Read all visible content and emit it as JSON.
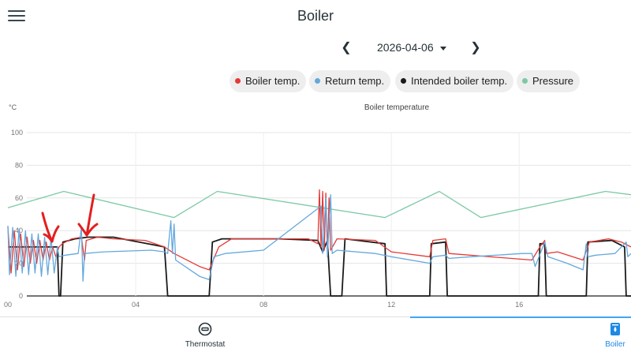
{
  "app": {
    "title": "Boiler",
    "menu_icon": "hamburger-menu-icon"
  },
  "date_nav": {
    "prev_icon": "chevron-left-icon",
    "date": "2026-04-06",
    "next_icon": "chevron-right-icon"
  },
  "legend": [
    {
      "label": "Boiler temp.",
      "color": "#e53935"
    },
    {
      "label": "Return temp.",
      "color": "#64a8dc"
    },
    {
      "label": "Intended boiler temp.",
      "color": "#1a1a1a"
    },
    {
      "label": "Pressure",
      "color": "#7cc9a4"
    }
  ],
  "chart": {
    "unit": "°C",
    "title": "Boiler temperature"
  },
  "chart_data": {
    "type": "line",
    "title": "Boiler temperature",
    "ylabel": "°C",
    "xlim": [
      0,
      19.5
    ],
    "ylim": [
      0,
      100
    ],
    "y_ticks": [
      "0",
      "20",
      "40",
      "60",
      "80",
      "100"
    ],
    "x_ticks": [
      {
        "value": 0,
        "label": "00"
      },
      {
        "value": 4,
        "label": "04"
      },
      {
        "value": 8,
        "label": "08"
      },
      {
        "value": 12,
        "label": "12"
      },
      {
        "value": 16,
        "label": "16"
      }
    ],
    "grid": true,
    "legend_position": "top-right",
    "series": [
      {
        "name": "Pressure",
        "color": "#7cc9a4",
        "points": [
          [
            0,
            54
          ],
          [
            1.75,
            64
          ],
          [
            5.2,
            48
          ],
          [
            6.55,
            64
          ],
          [
            11.8,
            48
          ],
          [
            13.5,
            64
          ],
          [
            14.8,
            48
          ],
          [
            18.7,
            64
          ],
          [
            19.5,
            62
          ]
        ]
      },
      {
        "name": "Intended boiler temp.",
        "color": "#1a1a1a",
        "points": [
          [
            0,
            30
          ],
          [
            1.55,
            30
          ],
          [
            1.6,
            0
          ],
          [
            1.65,
            0
          ],
          [
            1.72,
            33
          ],
          [
            2.1,
            35
          ],
          [
            2.5,
            36
          ],
          [
            3.3,
            36
          ],
          [
            4.9,
            30
          ],
          [
            5.0,
            0
          ],
          [
            6.3,
            0
          ],
          [
            6.4,
            33
          ],
          [
            6.7,
            35
          ],
          [
            8.5,
            35
          ],
          [
            9.7,
            34
          ],
          [
            9.85,
            27
          ],
          [
            10.0,
            34
          ],
          [
            10.1,
            0
          ],
          [
            10.45,
            0
          ],
          [
            10.55,
            35
          ],
          [
            11.8,
            32
          ],
          [
            11.85,
            0
          ],
          [
            13.2,
            0
          ],
          [
            13.25,
            32
          ],
          [
            13.7,
            33
          ],
          [
            13.75,
            0
          ],
          [
            16.6,
            0
          ],
          [
            16.65,
            32
          ],
          [
            16.8,
            32
          ],
          [
            16.85,
            0
          ],
          [
            18.1,
            0
          ],
          [
            18.15,
            33
          ],
          [
            18.9,
            34
          ],
          [
            19.3,
            30
          ],
          [
            19.35,
            0
          ],
          [
            19.5,
            0
          ]
        ]
      },
      {
        "name": "Boiler temp.",
        "color": "#e53935",
        "points": [
          [
            0,
            42
          ],
          [
            0.1,
            14
          ],
          [
            0.2,
            40
          ],
          [
            0.3,
            16
          ],
          [
            0.4,
            38
          ],
          [
            0.5,
            18
          ],
          [
            0.6,
            36
          ],
          [
            0.7,
            20
          ],
          [
            0.8,
            34
          ],
          [
            0.9,
            20
          ],
          [
            1.0,
            34
          ],
          [
            1.1,
            22
          ],
          [
            1.2,
            33
          ],
          [
            1.3,
            22
          ],
          [
            1.4,
            30
          ],
          [
            1.5,
            24
          ],
          [
            1.6,
            30
          ],
          [
            1.7,
            32
          ],
          [
            2.0,
            35
          ],
          [
            2.3,
            36
          ],
          [
            2.4,
            22
          ],
          [
            2.45,
            34
          ],
          [
            2.8,
            36
          ],
          [
            3.3,
            35
          ],
          [
            4.3,
            34
          ],
          [
            4.9,
            30
          ],
          [
            5.2,
            26
          ],
          [
            6.0,
            18
          ],
          [
            6.3,
            16
          ],
          [
            6.6,
            30
          ],
          [
            7.0,
            35
          ],
          [
            8.0,
            35
          ],
          [
            8.8,
            35
          ],
          [
            9.4,
            35
          ],
          [
            9.7,
            32
          ],
          [
            9.75,
            65
          ],
          [
            9.8,
            30
          ],
          [
            9.85,
            64
          ],
          [
            9.9,
            28
          ],
          [
            9.95,
            63
          ],
          [
            10.0,
            26
          ],
          [
            10.05,
            60
          ],
          [
            10.1,
            28
          ],
          [
            10.3,
            35
          ],
          [
            11.5,
            34
          ],
          [
            12.0,
            27
          ],
          [
            13.2,
            24
          ],
          [
            13.3,
            34
          ],
          [
            13.7,
            35
          ],
          [
            13.8,
            26
          ],
          [
            16.4,
            22
          ],
          [
            16.65,
            30
          ],
          [
            16.8,
            34
          ],
          [
            16.85,
            26
          ],
          [
            17.2,
            27
          ],
          [
            18.0,
            22
          ],
          [
            18.2,
            33
          ],
          [
            18.8,
            35
          ],
          [
            19.2,
            33
          ],
          [
            19.5,
            30
          ]
        ]
      },
      {
        "name": "Return temp.",
        "color": "#64a8dc",
        "points": [
          [
            0,
            43
          ],
          [
            0.05,
            13
          ],
          [
            0.15,
            42
          ],
          [
            0.25,
            12
          ],
          [
            0.35,
            41
          ],
          [
            0.45,
            14
          ],
          [
            0.55,
            40
          ],
          [
            0.65,
            13
          ],
          [
            0.75,
            38
          ],
          [
            0.85,
            14
          ],
          [
            0.95,
            38
          ],
          [
            1.05,
            12
          ],
          [
            1.15,
            36
          ],
          [
            1.25,
            13
          ],
          [
            1.35,
            36
          ],
          [
            1.45,
            14
          ],
          [
            1.55,
            30
          ],
          [
            1.6,
            24
          ],
          [
            1.8,
            25
          ],
          [
            2.2,
            26
          ],
          [
            2.3,
            42
          ],
          [
            2.35,
            9
          ],
          [
            2.4,
            26
          ],
          [
            3.0,
            27
          ],
          [
            4.5,
            28
          ],
          [
            4.9,
            27
          ],
          [
            5.0,
            26
          ],
          [
            5.1,
            46
          ],
          [
            5.15,
            26
          ],
          [
            5.2,
            44
          ],
          [
            5.25,
            22
          ],
          [
            6.0,
            12
          ],
          [
            6.3,
            10
          ],
          [
            6.45,
            24
          ],
          [
            6.8,
            26
          ],
          [
            8.0,
            28
          ],
          [
            9.8,
            55
          ],
          [
            9.85,
            26
          ],
          [
            9.95,
            60
          ],
          [
            10.0,
            24
          ],
          [
            10.1,
            62
          ],
          [
            10.15,
            26
          ],
          [
            10.3,
            28
          ],
          [
            11.5,
            26
          ],
          [
            12.0,
            24
          ],
          [
            13.2,
            20
          ],
          [
            13.3,
            24
          ],
          [
            13.7,
            25
          ],
          [
            13.8,
            23
          ],
          [
            14.5,
            24
          ],
          [
            16.1,
            26
          ],
          [
            16.4,
            26
          ],
          [
            16.5,
            18
          ],
          [
            16.7,
            28
          ],
          [
            16.8,
            33
          ],
          [
            16.9,
            24
          ],
          [
            17.5,
            20
          ],
          [
            18.0,
            16
          ],
          [
            18.1,
            32
          ],
          [
            18.15,
            24
          ],
          [
            18.4,
            25
          ],
          [
            19.0,
            26
          ],
          [
            19.35,
            33
          ],
          [
            19.4,
            24
          ],
          [
            19.5,
            26
          ]
        ]
      }
    ]
  },
  "annotations": [
    {
      "name": "red-arrow-1"
    },
    {
      "name": "red-arrow-2"
    }
  ],
  "bottom_nav": [
    {
      "label": "Thermostat",
      "icon": "thermostat-icon",
      "color": "#263238"
    },
    {
      "label": "Boiler",
      "icon": "boiler-icon",
      "color": "#1e88e5"
    }
  ]
}
